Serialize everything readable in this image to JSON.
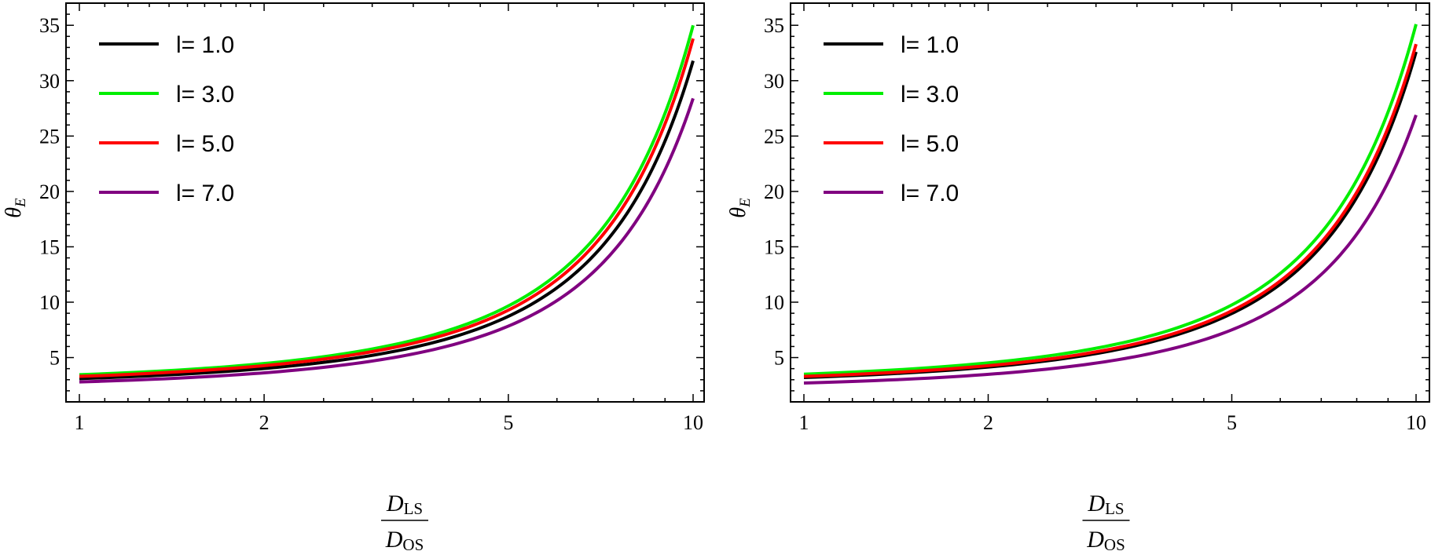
{
  "chart_data": [
    {
      "type": "line",
      "xscale": "log",
      "xlim": [
        1,
        10
      ],
      "ylim": [
        1,
        37
      ],
      "xticks": [
        1,
        2,
        5,
        10
      ],
      "xtick_labels": [
        "1",
        "2",
        "5",
        "10"
      ],
      "yticks": [
        5,
        10,
        15,
        20,
        25,
        30,
        35
      ],
      "ytick_labels": [
        "5",
        "10",
        "15",
        "20",
        "25",
        "30",
        "35"
      ],
      "xlabel": {
        "numerator": "D",
        "numerator_sub": "LS",
        "denominator": "D",
        "denominator_sub": "OS"
      },
      "ylabel": {
        "symbol": "θ",
        "sub": "E"
      },
      "legend_position": "top-left",
      "grid": false,
      "series": [
        {
          "name": "l= 1.0",
          "color": "#000000",
          "y_at_1": 3.1,
          "y_at_10": 31.8
        },
        {
          "name": "l= 3.0",
          "color": "#00ee00",
          "y_at_1": 3.45,
          "y_at_10": 35.0
        },
        {
          "name": "l= 5.0",
          "color": "#ff0000",
          "y_at_1": 3.3,
          "y_at_10": 33.8
        },
        {
          "name": "l= 7.0",
          "color": "#800080",
          "y_at_1": 2.8,
          "y_at_10": 28.4
        }
      ]
    },
    {
      "type": "line",
      "xscale": "log",
      "xlim": [
        1,
        10
      ],
      "ylim": [
        1,
        37
      ],
      "xticks": [
        1,
        2,
        5,
        10
      ],
      "xtick_labels": [
        "1",
        "2",
        "5",
        "10"
      ],
      "yticks": [
        5,
        10,
        15,
        20,
        25,
        30,
        35
      ],
      "ytick_labels": [
        "5",
        "10",
        "15",
        "20",
        "25",
        "30",
        "35"
      ],
      "xlabel": {
        "numerator": "D",
        "numerator_sub": "LS",
        "denominator": "D",
        "denominator_sub": "OS"
      },
      "ylabel": {
        "symbol": "θ",
        "sub": "E"
      },
      "legend_position": "top-left",
      "grid": false,
      "series": [
        {
          "name": "l= 1.0",
          "color": "#000000",
          "y_at_1": 3.2,
          "y_at_10": 32.6
        },
        {
          "name": "l= 3.0",
          "color": "#00ee00",
          "y_at_1": 3.5,
          "y_at_10": 35.1
        },
        {
          "name": "l= 5.0",
          "color": "#ff0000",
          "y_at_1": 3.3,
          "y_at_10": 33.3
        },
        {
          "name": "l= 7.0",
          "color": "#800080",
          "y_at_1": 2.7,
          "y_at_10": 26.9
        }
      ]
    }
  ]
}
